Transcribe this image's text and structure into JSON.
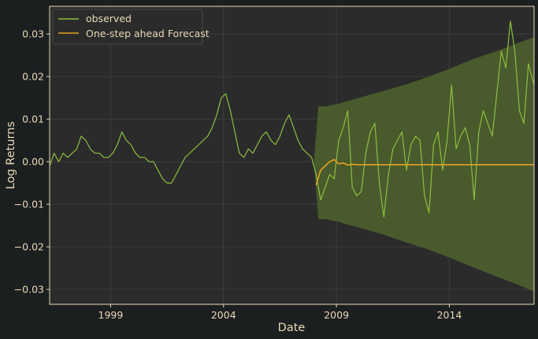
{
  "chart_data": {
    "type": "line",
    "xlabel": "Date",
    "ylabel": "Log Returns",
    "xlim": [
      1996.3,
      2017.75
    ],
    "ylim": [
      -0.0335,
      0.0365
    ],
    "x_ticks": [
      1999,
      2004,
      2009,
      2014
    ],
    "y_ticks": [
      -0.03,
      -0.02,
      -0.01,
      0.0,
      0.01,
      0.02,
      0.03
    ],
    "y_tick_labels": [
      "−0.03",
      "−0.02",
      "−0.01",
      "0.00",
      "0.01",
      "0.02",
      "0.03"
    ],
    "grid": true,
    "legend_position": "top-left",
    "colors": {
      "background": "#1c1f20",
      "plot_background": "#2b2b2b",
      "grid": "#3e3e3e",
      "frame": "#e8d9b8",
      "observed": "#8bbf3f",
      "forecast": "#e8a020",
      "band": "#4d5f2c"
    },
    "series": [
      {
        "name": "observed",
        "x": [
          1996.3,
          1996.5,
          1996.7,
          1996.9,
          1997.1,
          1997.3,
          1997.5,
          1997.7,
          1997.9,
          1998.1,
          1998.3,
          1998.5,
          1998.7,
          1998.9,
          1999.1,
          1999.3,
          1999.5,
          1999.7,
          1999.9,
          2000.1,
          2000.3,
          2000.5,
          2000.7,
          2000.9,
          2001.1,
          2001.3,
          2001.5,
          2001.7,
          2001.9,
          2002.1,
          2002.3,
          2002.5,
          2002.7,
          2002.9,
          2003.1,
          2003.3,
          2003.5,
          2003.7,
          2003.9,
          2004.1,
          2004.3,
          2004.5,
          2004.7,
          2004.9,
          2005.1,
          2005.3,
          2005.5,
          2005.7,
          2005.9,
          2006.1,
          2006.3,
          2006.5,
          2006.7,
          2006.9,
          2007.1,
          2007.3,
          2007.5,
          2007.7,
          2007.9,
          2008.1,
          2008.3,
          2008.5,
          2008.7,
          2008.9,
          2009.1,
          2009.3,
          2009.5,
          2009.7,
          2009.9,
          2010.1,
          2010.3,
          2010.5,
          2010.7,
          2010.9,
          2011.1,
          2011.3,
          2011.5,
          2011.7,
          2011.9,
          2012.1,
          2012.3,
          2012.5,
          2012.7,
          2012.9,
          2013.1,
          2013.3,
          2013.5,
          2013.7,
          2013.9,
          2014.1,
          2014.3,
          2014.5,
          2014.7,
          2014.9,
          2015.1,
          2015.3,
          2015.5,
          2015.7,
          2015.9,
          2016.1,
          2016.3,
          2016.5,
          2016.7,
          2016.9,
          2017.1,
          2017.3,
          2017.5,
          2017.75
        ],
        "values": [
          -0.001,
          0.002,
          0.0,
          0.002,
          0.001,
          0.002,
          0.003,
          0.006,
          0.005,
          0.003,
          0.002,
          0.002,
          0.001,
          0.001,
          0.002,
          0.004,
          0.007,
          0.005,
          0.004,
          0.002,
          0.001,
          0.001,
          0.0,
          0.0,
          -0.002,
          -0.004,
          -0.005,
          -0.005,
          -0.003,
          -0.001,
          0.001,
          0.002,
          0.003,
          0.004,
          0.005,
          0.006,
          0.008,
          0.011,
          0.015,
          0.016,
          0.012,
          0.007,
          0.002,
          0.001,
          0.003,
          0.002,
          0.004,
          0.006,
          0.007,
          0.005,
          0.004,
          0.006,
          0.009,
          0.011,
          0.008,
          0.005,
          0.003,
          0.002,
          0.001,
          -0.003,
          -0.009,
          -0.006,
          -0.003,
          -0.004,
          0.005,
          0.008,
          0.012,
          -0.006,
          -0.008,
          -0.007,
          0.002,
          0.007,
          0.009,
          -0.005,
          -0.013,
          -0.003,
          0.003,
          0.005,
          0.007,
          -0.002,
          0.004,
          0.006,
          0.005,
          -0.008,
          -0.012,
          0.004,
          0.007,
          -0.002,
          0.005,
          0.018,
          0.003,
          0.006,
          0.008,
          0.004,
          -0.009,
          0.007,
          0.012,
          0.009,
          0.006,
          0.016,
          0.026,
          0.022,
          0.033,
          0.026,
          0.012,
          0.009,
          0.023,
          0.018
        ]
      },
      {
        "name": "One-step ahead Forecast",
        "x": [
          2008.1,
          2008.3,
          2008.5,
          2008.7,
          2008.9,
          2009.1,
          2009.3,
          2009.5,
          2009.7,
          2009.9,
          2010.5,
          2011.5,
          2012.5,
          2013.5,
          2014.5,
          2015.5,
          2016.5,
          2017.75
        ],
        "values": [
          -0.0055,
          -0.002,
          -0.001,
          0.0,
          0.0005,
          -0.0005,
          -0.0003,
          -0.0008,
          -0.0006,
          -0.0007,
          -0.0007,
          -0.0007,
          -0.0007,
          -0.0007,
          -0.0007,
          -0.0007,
          -0.0007,
          -0.0007
        ]
      }
    ],
    "confidence_band": {
      "x": [
        2008.0,
        2008.2,
        2008.5,
        2009.0,
        2010.0,
        2011.0,
        2012.0,
        2013.0,
        2014.0,
        2015.0,
        2016.0,
        2017.0,
        2017.75
      ],
      "upper": [
        0.0,
        0.013,
        0.013,
        0.0135,
        0.015,
        0.0165,
        0.018,
        0.0198,
        0.0218,
        0.024,
        0.0258,
        0.0278,
        0.0293
      ],
      "lower": [
        0.0,
        -0.0135,
        -0.0135,
        -0.014,
        -0.0155,
        -0.017,
        -0.0188,
        -0.0205,
        -0.0225,
        -0.0247,
        -0.0268,
        -0.0288,
        -0.0305
      ]
    }
  }
}
